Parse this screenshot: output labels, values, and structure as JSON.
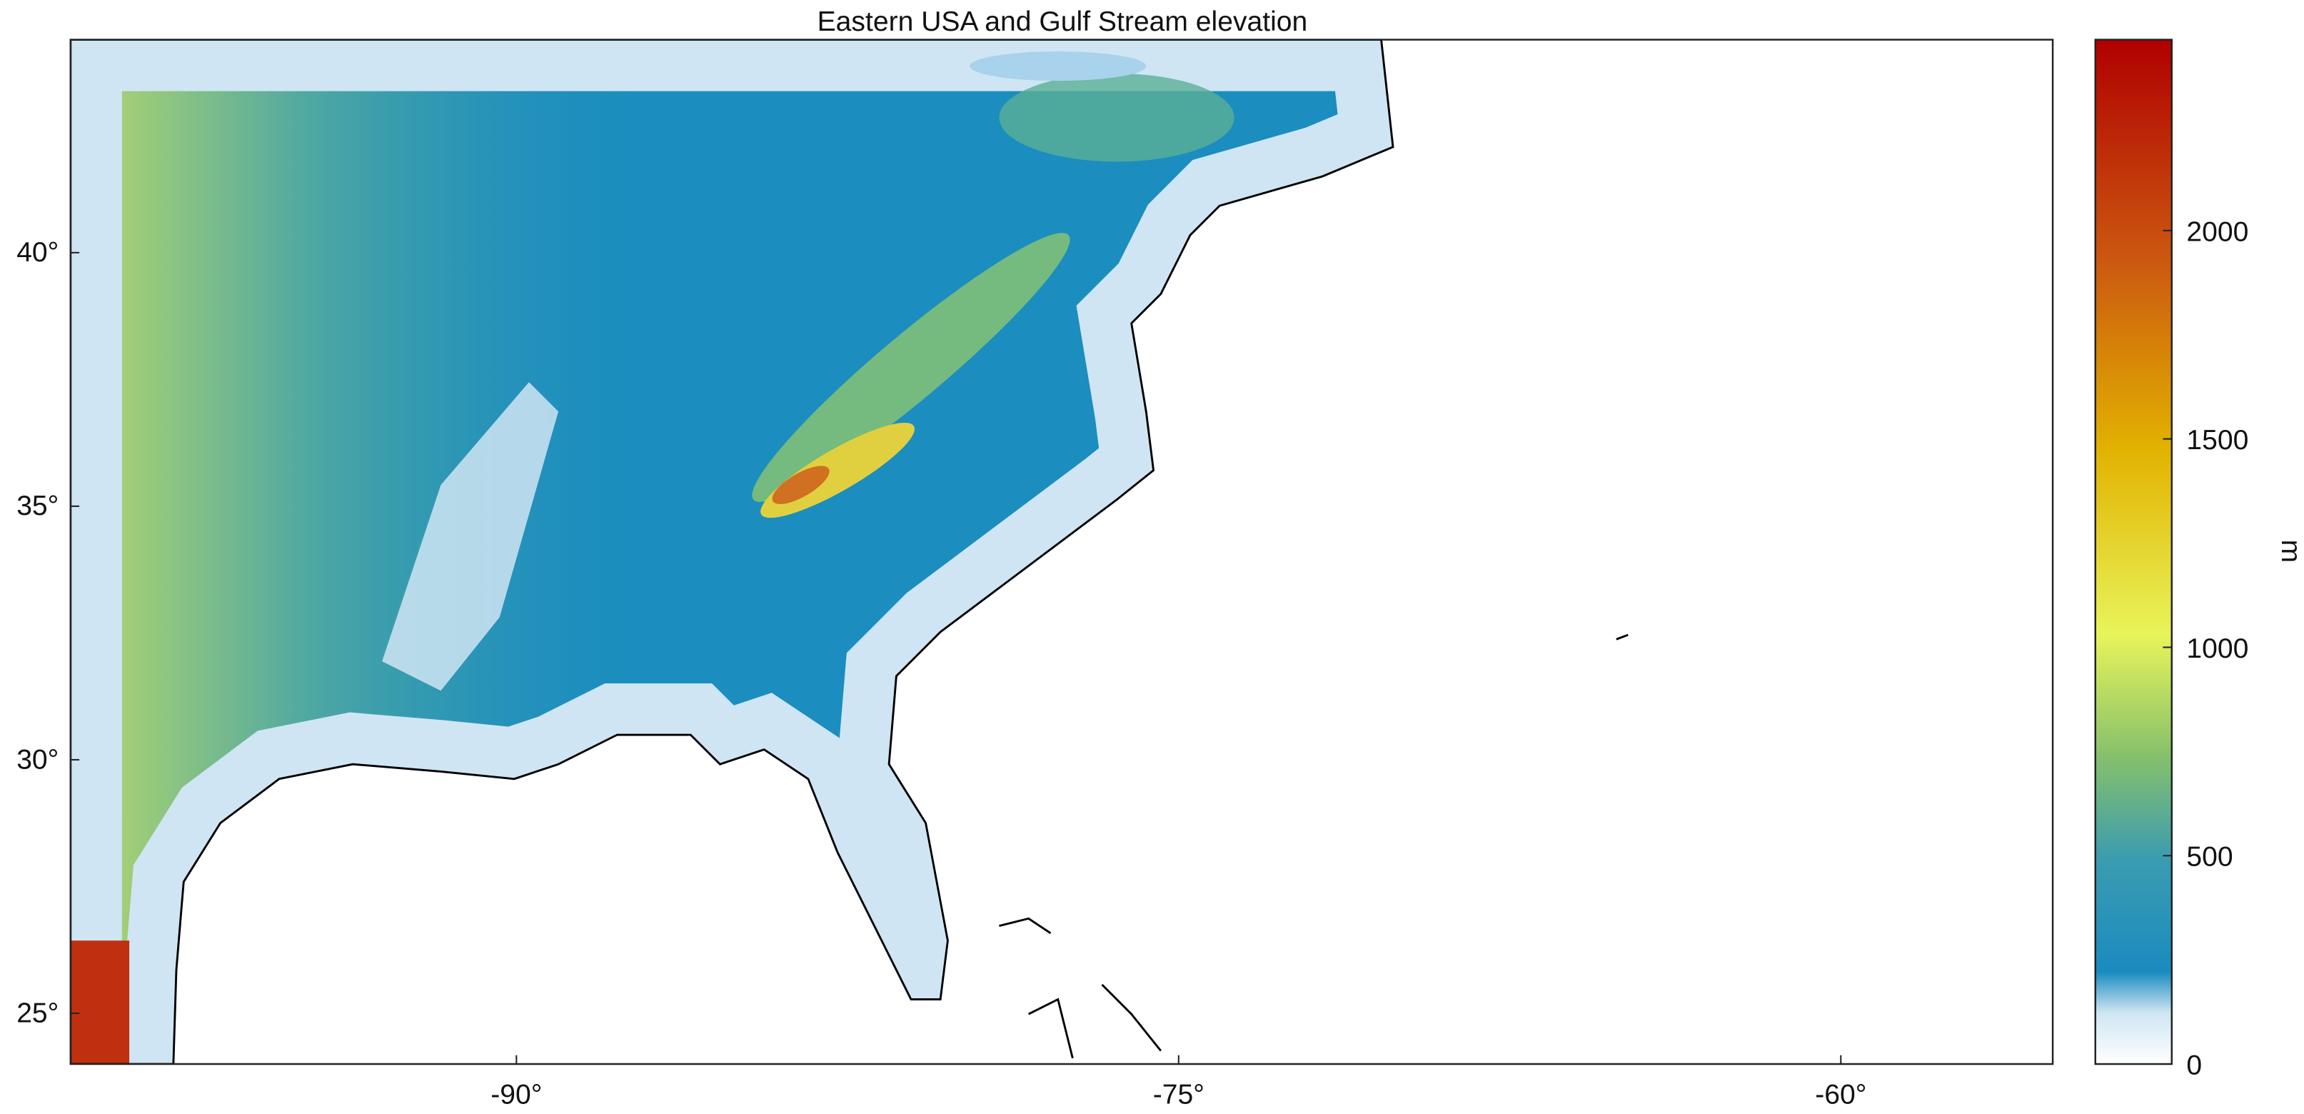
{
  "title": "Eastern USA and Gulf Stream elevation",
  "map": {
    "xlim": [
      -100.1,
      -55.2
    ],
    "ylim": [
      24.0,
      44.2
    ],
    "xticks": [
      {
        "value": -90,
        "label": "-90°"
      },
      {
        "value": -75,
        "label": "-75°"
      },
      {
        "value": -60,
        "label": "-60°"
      }
    ],
    "yticks": [
      {
        "value": 25,
        "label": "25°"
      },
      {
        "value": 30,
        "label": "30°"
      },
      {
        "value": 35,
        "label": "35°"
      },
      {
        "value": 40,
        "label": "40°"
      }
    ]
  },
  "colorbar": {
    "label": "m",
    "lim": [
      0,
      2458
    ],
    "ticks": [
      0,
      500,
      1000,
      1500,
      2000
    ]
  }
}
